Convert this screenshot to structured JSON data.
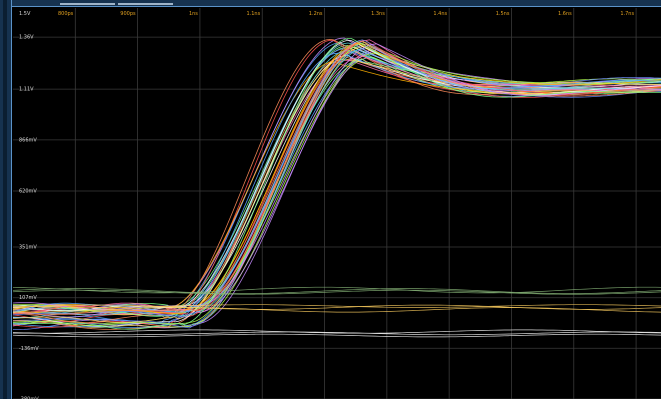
{
  "window": {
    "accent_color": "#5b93c9",
    "frame_color": "#16324f",
    "background_color": "#000000"
  },
  "chart_data": {
    "type": "line",
    "title": "",
    "xlabel": "",
    "ylabel": "",
    "corner_label": "1.5V",
    "x_ticks": [
      "800ps",
      "900ps",
      "1ns",
      "1.1ns",
      "1.2ns",
      "1.3ns",
      "1.4ns",
      "1.5ns",
      "1.6ns",
      "1.7ns"
    ],
    "y_ticks": [
      "1.36V",
      "1.11V",
      "866mV",
      "620mV",
      "351mV",
      "107mV",
      "-136mV",
      "-380mV"
    ],
    "xlim_ns": [
      0.7,
      1.74
    ],
    "ylim_V": [
      -0.38,
      1.5
    ],
    "grid": true,
    "waveform_count": 40,
    "waveform_shape": {
      "low_level_V": 0.02,
      "high_peak_V": 1.36,
      "settled_level_V": 1.13,
      "rise_start_ns": 0.96,
      "rise_end_ns": 1.24,
      "peak_time_ns": 1.29
    },
    "series_colors": [
      "#58a6ff",
      "#ff8c5a",
      "#c78bff",
      "#7cff8a",
      "#ffe066",
      "#ff6fae",
      "#59e0e0",
      "#ffffff",
      "#b0ff4a",
      "#ff5050",
      "#6f8cff",
      "#ffb000"
    ],
    "flat_traces": [
      {
        "level_V": 0.13,
        "color": "#8ab77a"
      },
      {
        "level_V": 0.06,
        "color": "#ffd060"
      },
      {
        "level_V": -0.06,
        "color": "#ffffff"
      }
    ]
  }
}
